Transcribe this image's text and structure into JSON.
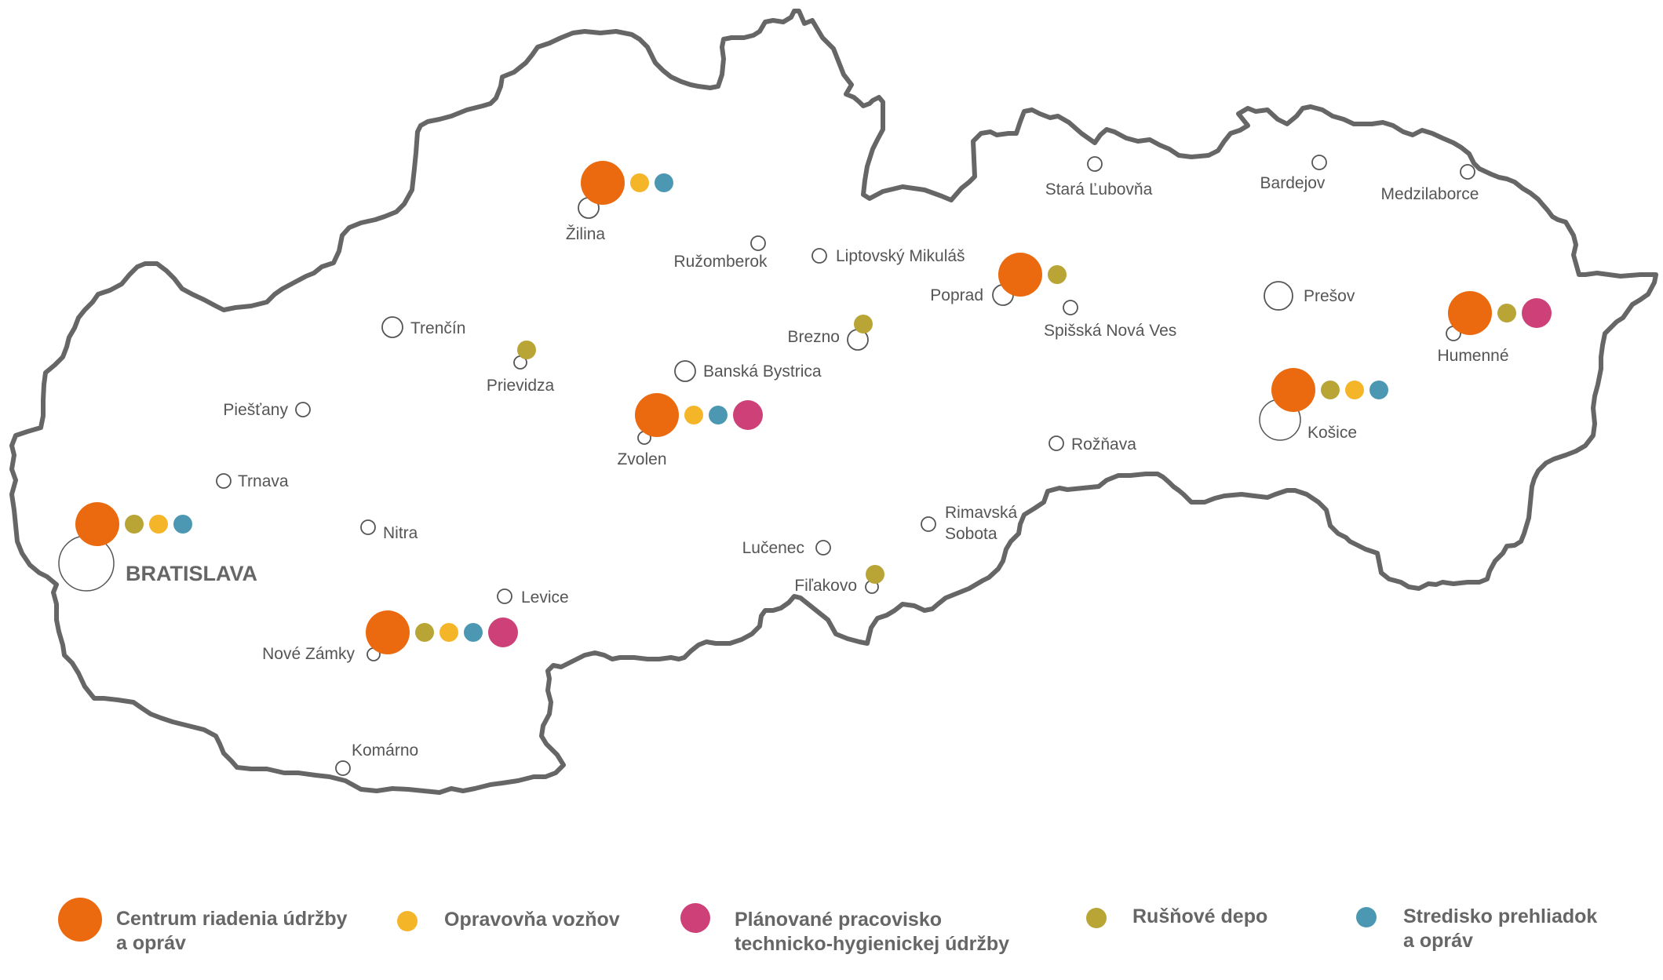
{
  "colors": {
    "border": "#666666",
    "city_ring": "#555555",
    "centrum": "#EB6A0F",
    "opravovna": "#F5B528",
    "planovane": "#CD4178",
    "rusnove": "#B8A536",
    "stredisko": "#4C98B2"
  },
  "legend": [
    {
      "key": "centrum",
      "lines": [
        "Centrum riadenia údržby",
        "a opráv"
      ]
    },
    {
      "key": "opravovna",
      "lines": [
        "Opravovňa vozňov"
      ]
    },
    {
      "key": "planovane",
      "lines": [
        "Plánované pracovisko",
        "technicko-hygienickej údržby"
      ]
    },
    {
      "key": "rusnove",
      "lines": [
        "Rušňové depo"
      ]
    },
    {
      "key": "stredisko",
      "lines": [
        "Stredisko prehliadok",
        "a opráv"
      ]
    }
  ],
  "cities": [
    {
      "name": "BRATISLAVA",
      "capital": true,
      "facilities": [
        "centrum",
        "rusnove",
        "opravovna",
        "stredisko"
      ]
    },
    {
      "name": "Trnava",
      "facilities": []
    },
    {
      "name": "Piešťany",
      "facilities": []
    },
    {
      "name": "Nitra",
      "facilities": []
    },
    {
      "name": "Trenčín",
      "facilities": []
    },
    {
      "name": "Nové Zámky",
      "facilities": [
        "centrum",
        "rusnove",
        "opravovna",
        "stredisko",
        "planovane"
      ]
    },
    {
      "name": "Komárno",
      "facilities": []
    },
    {
      "name": "Levice",
      "facilities": []
    },
    {
      "name": "Prievidza",
      "facilities": [
        "rusnove"
      ]
    },
    {
      "name": "Žilina",
      "facilities": [
        "centrum",
        "opravovna",
        "stredisko"
      ]
    },
    {
      "name": "Ružomberok",
      "facilities": []
    },
    {
      "name": "Liptovský Mikuláš",
      "facilities": []
    },
    {
      "name": "Banská Bystrica",
      "facilities": []
    },
    {
      "name": "Zvolen",
      "facilities": [
        "centrum",
        "opravovna",
        "stredisko",
        "planovane"
      ]
    },
    {
      "name": "Brezno",
      "facilities": [
        "rusnove"
      ]
    },
    {
      "name": "Lučenec",
      "facilities": []
    },
    {
      "name": "Fiľakovo",
      "facilities": [
        "rusnove"
      ]
    },
    {
      "name": "Rimavská Sobota",
      "facilities": []
    },
    {
      "name": "Poprad",
      "facilities": [
        "centrum",
        "rusnove"
      ]
    },
    {
      "name": "Spišská Nová Ves",
      "facilities": []
    },
    {
      "name": "Rožňava",
      "facilities": []
    },
    {
      "name": "Stará Ľubovňa",
      "facilities": []
    },
    {
      "name": "Bardejov",
      "facilities": []
    },
    {
      "name": "Prešov",
      "facilities": []
    },
    {
      "name": "Košice",
      "facilities": [
        "centrum",
        "rusnove",
        "opravovna",
        "stredisko"
      ]
    },
    {
      "name": "Humenné",
      "facilities": [
        "centrum",
        "rusnove",
        "planovane"
      ]
    },
    {
      "name": "Medzilaborce",
      "facilities": []
    }
  ]
}
